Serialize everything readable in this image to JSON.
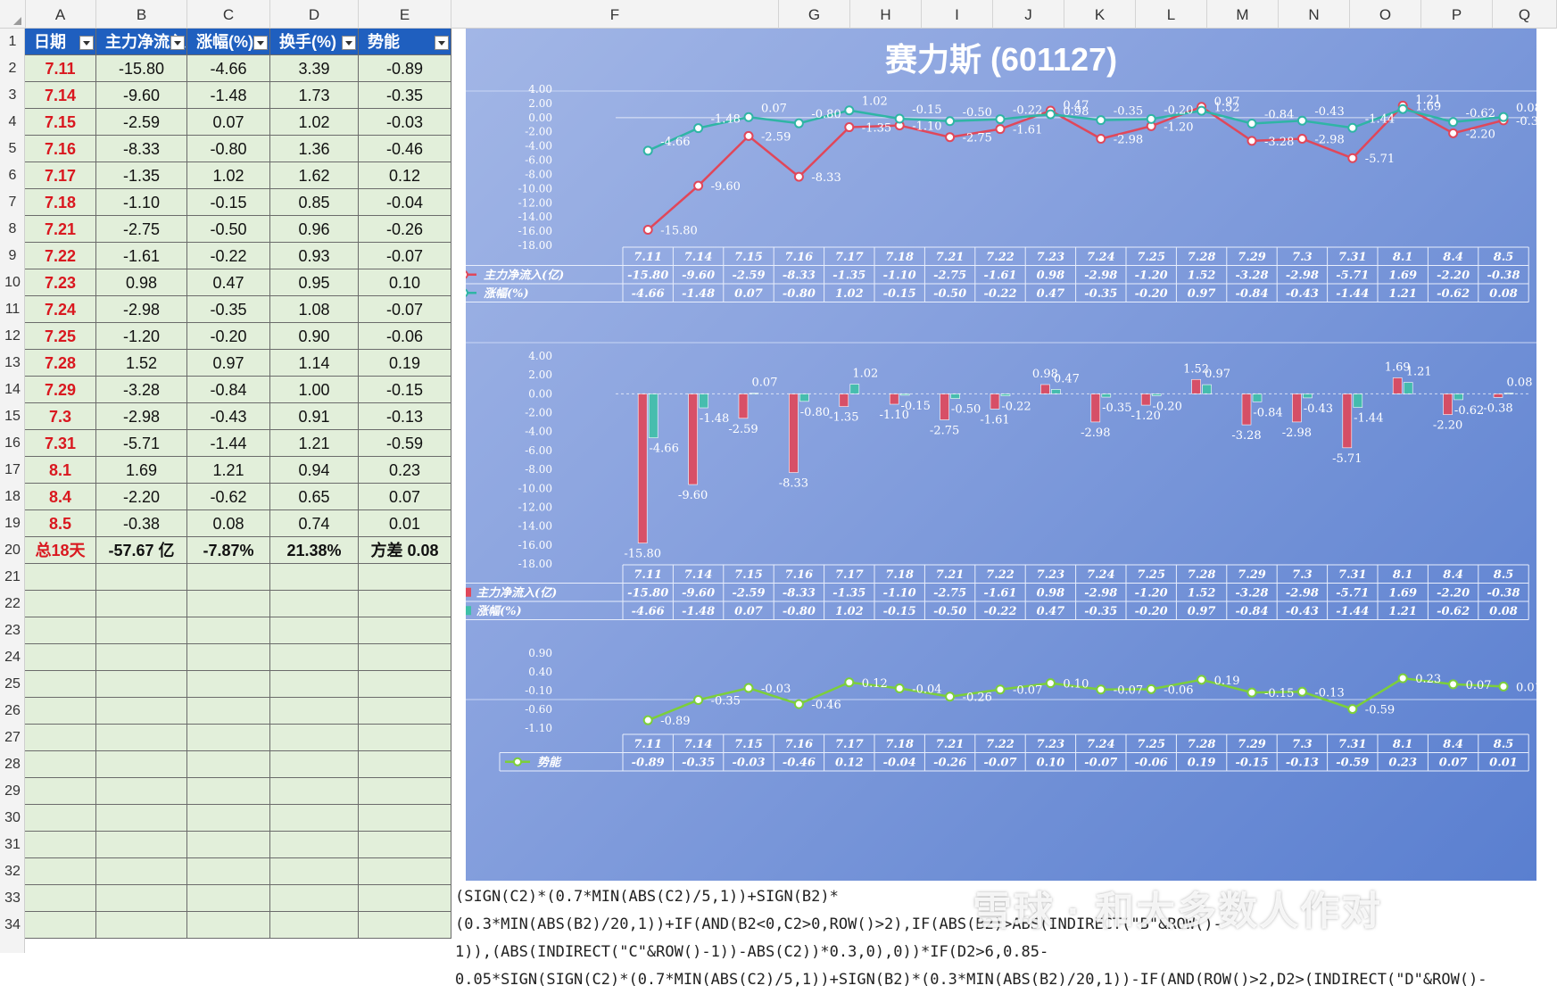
{
  "columns": [
    "A",
    "B",
    "C",
    "D",
    "E",
    "F",
    "G",
    "H",
    "I",
    "J",
    "K",
    "L",
    "M",
    "N",
    "O",
    "P",
    "Q"
  ],
  "rows": [
    "1",
    "2",
    "3",
    "4",
    "5",
    "6",
    "7",
    "8",
    "9",
    "10",
    "11",
    "12",
    "13",
    "14",
    "15",
    "16",
    "17",
    "18",
    "19",
    "20",
    "21",
    "22",
    "23",
    "24",
    "25",
    "26",
    "27",
    "28",
    "29",
    "30",
    "31",
    "32",
    "33",
    "34"
  ],
  "table": {
    "headers": [
      "日期",
      "主力净流入",
      "涨幅(%)",
      "换手(%)",
      "势能"
    ],
    "rows": [
      [
        "7.11",
        "-15.80",
        "-4.66",
        "3.39",
        "-0.89"
      ],
      [
        "7.14",
        "-9.60",
        "-1.48",
        "1.73",
        "-0.35"
      ],
      [
        "7.15",
        "-2.59",
        "0.07",
        "1.02",
        "-0.03"
      ],
      [
        "7.16",
        "-8.33",
        "-0.80",
        "1.36",
        "-0.46"
      ],
      [
        "7.17",
        "-1.35",
        "1.02",
        "1.62",
        "0.12"
      ],
      [
        "7.18",
        "-1.10",
        "-0.15",
        "0.85",
        "-0.04"
      ],
      [
        "7.21",
        "-2.75",
        "-0.50",
        "0.96",
        "-0.26"
      ],
      [
        "7.22",
        "-1.61",
        "-0.22",
        "0.93",
        "-0.07"
      ],
      [
        "7.23",
        "0.98",
        "0.47",
        "0.95",
        "0.10"
      ],
      [
        "7.24",
        "-2.98",
        "-0.35",
        "1.08",
        "-0.07"
      ],
      [
        "7.25",
        "-1.20",
        "-0.20",
        "0.90",
        "-0.06"
      ],
      [
        "7.28",
        "1.52",
        "0.97",
        "1.14",
        "0.19"
      ],
      [
        "7.29",
        "-3.28",
        "-0.84",
        "1.00",
        "-0.15"
      ],
      [
        "7.3",
        "-2.98",
        "-0.43",
        "0.91",
        "-0.13"
      ],
      [
        "7.31",
        "-5.71",
        "-1.44",
        "1.21",
        "-0.59"
      ],
      [
        "8.1",
        "1.69",
        "1.21",
        "0.94",
        "0.23"
      ],
      [
        "8.4",
        "-2.20",
        "-0.62",
        "0.65",
        "0.07"
      ],
      [
        "8.5",
        "-0.38",
        "0.08",
        "0.74",
        "0.01"
      ]
    ],
    "total": [
      "总18天",
      "-57.67 亿",
      "-7.87%",
      "21.38%",
      "方差 0.08"
    ]
  },
  "chart_title": "赛力斯 (601127)",
  "chart_data": [
    {
      "type": "line",
      "categories": [
        "7.11",
        "7.14",
        "7.15",
        "7.16",
        "7.17",
        "7.18",
        "7.21",
        "7.22",
        "7.23",
        "7.24",
        "7.25",
        "7.28",
        "7.29",
        "7.3",
        "7.31",
        "8.1",
        "8.4",
        "8.5"
      ],
      "series": [
        {
          "name": "主力净流入(亿)",
          "color": "#e0475a",
          "values": [
            -15.8,
            -9.6,
            -2.59,
            -8.33,
            -1.35,
            -1.1,
            -2.75,
            -1.61,
            0.98,
            -2.98,
            -1.2,
            1.52,
            -3.28,
            -2.98,
            -5.71,
            1.69,
            -2.2,
            -0.38
          ]
        },
        {
          "name": "涨幅(%)",
          "color": "#2fb5a5",
          "values": [
            -4.66,
            -1.48,
            0.07,
            -0.8,
            1.02,
            -0.15,
            -0.5,
            -0.22,
            0.47,
            -0.35,
            -0.2,
            0.97,
            -0.84,
            -0.43,
            -1.44,
            1.21,
            -0.62,
            0.08
          ]
        }
      ],
      "ylim": [
        -18,
        4
      ],
      "yticks": [
        "4.00",
        "2.00",
        "0.00",
        "-2.00",
        "-4.00",
        "-6.00",
        "-8.00",
        "-10.00",
        "-12.00",
        "-14.00",
        "-16.00",
        "-18.00"
      ],
      "data_table": true
    },
    {
      "type": "bar",
      "categories": [
        "7.11",
        "7.14",
        "7.15",
        "7.16",
        "7.17",
        "7.18",
        "7.21",
        "7.22",
        "7.23",
        "7.24",
        "7.25",
        "7.28",
        "7.29",
        "7.3",
        "7.31",
        "8.1",
        "8.4",
        "8.5"
      ],
      "series": [
        {
          "name": "主力净流入(亿)",
          "color": "#e0475a",
          "values": [
            -15.8,
            -9.6,
            -2.59,
            -8.33,
            -1.35,
            -1.1,
            -2.75,
            -1.61,
            0.98,
            -2.98,
            -1.2,
            1.52,
            -3.28,
            -2.98,
            -5.71,
            1.69,
            -2.2,
            -0.38
          ]
        },
        {
          "name": "涨幅(%)",
          "color": "#3fc0a8",
          "values": [
            -4.66,
            -1.48,
            0.07,
            -0.8,
            1.02,
            -0.15,
            -0.5,
            -0.22,
            0.47,
            -0.35,
            -0.2,
            0.97,
            -0.84,
            -0.43,
            -1.44,
            1.21,
            -0.62,
            0.08
          ]
        }
      ],
      "ylim": [
        -18,
        4
      ],
      "yticks": [
        "4.00",
        "2.00",
        "0.00",
        "-2.00",
        "-4.00",
        "-6.00",
        "-8.00",
        "-10.00",
        "-12.00",
        "-14.00",
        "-16.00",
        "-18.00"
      ],
      "data_table": true
    },
    {
      "type": "line",
      "categories": [
        "7.11",
        "7.14",
        "7.15",
        "7.16",
        "7.17",
        "7.18",
        "7.21",
        "7.22",
        "7.23",
        "7.24",
        "7.25",
        "7.28",
        "7.29",
        "7.3",
        "7.31",
        "8.1",
        "8.4",
        "8.5"
      ],
      "series": [
        {
          "name": "势能",
          "color": "#7ccf3a",
          "values": [
            -0.89,
            -0.35,
            -0.03,
            -0.46,
            0.12,
            -0.04,
            -0.26,
            -0.07,
            0.1,
            -0.07,
            -0.06,
            0.19,
            -0.15,
            -0.13,
            -0.59,
            0.23,
            0.07,
            0.01
          ]
        }
      ],
      "ylim": [
        -1.1,
        0.9
      ],
      "yticks": [
        "0.90",
        "0.40",
        "-0.10",
        "-0.60",
        "-1.10"
      ],
      "data_table": true
    }
  ],
  "formula_lines": [
    "(SIGN(C2)*(0.7*MIN(ABS(C2)/5,1))+SIGN(B2)*(0.3*MIN(ABS(B2)/20,1))+IF(AND(B2<0,C2>0,ROW()>2),IF(ABS(B2)>ABS(INDIRECT(\"B\"&ROW()-",
    "1)),(ABS(INDIRECT(\"C\"&ROW()-1))-ABS(C2))*0.3,0),0))*IF(D2>6,0.85-",
    "0.05*SIGN(SIGN(C2)*(0.7*MIN(ABS(C2)/5,1))+SIGN(B2)*(0.3*MIN(ABS(B2)/20,1))-IF(AND(ROW()>2,D2>(INDIRECT(\"D\"&ROW()-"
  ],
  "watermark": "雪球 · 和大多数人作对"
}
